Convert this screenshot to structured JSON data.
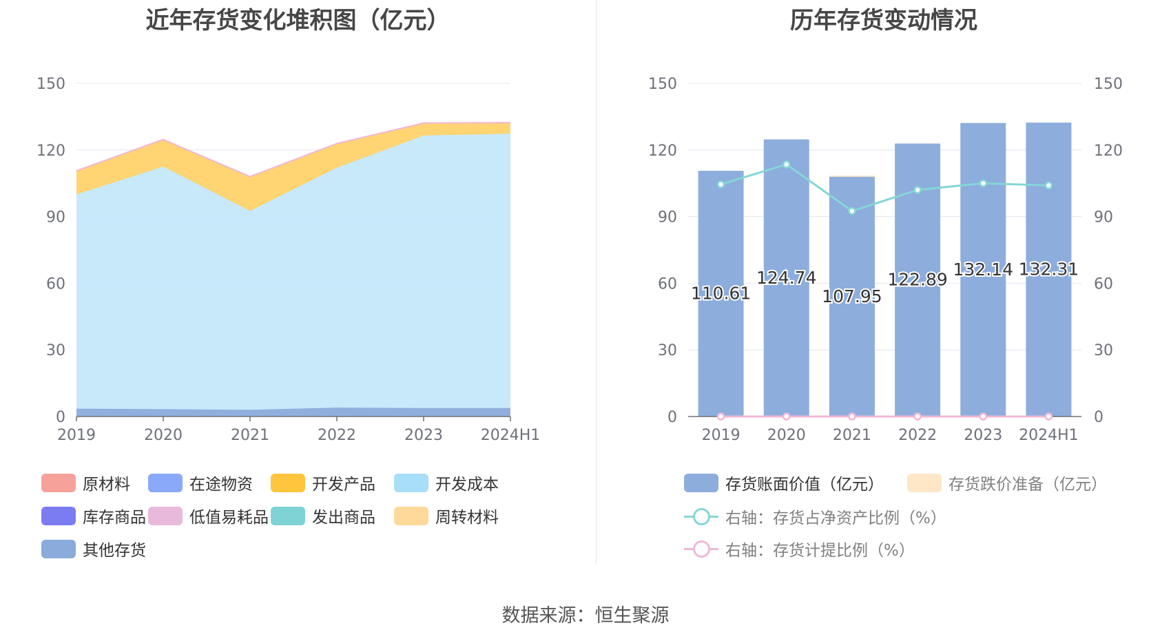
{
  "footer": {
    "source": "数据来源：恒生聚源"
  },
  "left_chart": {
    "title": "近年存货变化堆积图（亿元）",
    "legend": [
      {
        "name": "原材料",
        "color": "#f6a19a"
      },
      {
        "name": "在途物资",
        "color": "#8aa9f8"
      },
      {
        "name": "开发产品",
        "color": "#ffc53d"
      },
      {
        "name": "开发成本",
        "color": "#a8def8"
      },
      {
        "name": "库存商品",
        "color": "#7b7cf2"
      },
      {
        "name": "低值易耗品",
        "color": "#e8b9da"
      },
      {
        "name": "发出商品",
        "color": "#7fd3d4"
      },
      {
        "name": "周转材料",
        "color": "#ffd99a"
      },
      {
        "name": "其他存货",
        "color": "#8babdc"
      }
    ]
  },
  "right_chart": {
    "title": "历年存货变动情况",
    "legend": [
      {
        "name": "存货账面价值（亿元）",
        "color": "#8daddc",
        "kind": "bar"
      },
      {
        "name": "存货跌价准备（亿元）",
        "color": "#fde7c7",
        "kind": "bar"
      },
      {
        "name": "右轴：存货占净资产比例（%）",
        "color": "#85d6d6",
        "kind": "line"
      },
      {
        "name": "右轴：存货计提比例（%）",
        "color": "#f0b8d6",
        "kind": "line"
      }
    ]
  },
  "chart_data": [
    {
      "type": "area",
      "stacked": true,
      "title": "近年存货变化堆积图（亿元）",
      "x": [
        "2019",
        "2020",
        "2021",
        "2022",
        "2023",
        "2024H1"
      ],
      "ylim": [
        0,
        150
      ],
      "yticks": [
        0,
        30,
        60,
        90,
        120,
        150
      ],
      "grid": true,
      "legend_position": "bottom",
      "series": [
        {
          "name": "其他存货",
          "color": "#8babdc",
          "values": [
            3.5,
            3.3,
            3.0,
            4.0,
            3.8,
            3.8
          ]
        },
        {
          "name": "开发成本",
          "color": "#c5e8fa",
          "values": [
            96.5,
            109.2,
            89.5,
            108.0,
            122.7,
            123.5
          ]
        },
        {
          "name": "开发产品",
          "color": "#ffd36b",
          "values": [
            10.6,
            12.2,
            15.5,
            10.9,
            5.6,
            5.0
          ]
        }
      ]
    },
    {
      "type": "bar",
      "title": "历年存货变动情况",
      "categories": [
        "2019",
        "2020",
        "2021",
        "2022",
        "2023",
        "2024H1"
      ],
      "ylim": [
        0,
        150
      ],
      "yticks": [
        0,
        30,
        60,
        90,
        120,
        150
      ],
      "y2lim": [
        0,
        150
      ],
      "y2ticks": [
        0,
        30,
        60,
        90,
        120,
        150
      ],
      "grid": true,
      "legend_position": "bottom",
      "series": [
        {
          "name": "存货账面价值（亿元）",
          "kind": "bar",
          "axis": "left",
          "color": "#8daddc",
          "values": [
            110.61,
            124.74,
            107.95,
            122.89,
            132.14,
            132.31
          ],
          "labels": [
            "110.61",
            "124.74",
            "107.95",
            "122.89",
            "132.14",
            "132.31"
          ]
        },
        {
          "name": "存货跌价准备（亿元）",
          "kind": "bar",
          "axis": "left",
          "color": "#fde7c7",
          "values": [
            0,
            0,
            0.5,
            0,
            0,
            0
          ]
        },
        {
          "name": "右轴：存货占净资产比例（%）",
          "kind": "line",
          "axis": "right",
          "color": "#85d6d6",
          "values": [
            104.5,
            113.5,
            92.5,
            102.0,
            105.0,
            104.0
          ]
        },
        {
          "name": "右轴：存货计提比例（%）",
          "kind": "line",
          "axis": "right",
          "color": "#f0b8d6",
          "values": [
            0,
            0,
            0,
            0,
            0,
            0
          ]
        }
      ]
    }
  ]
}
